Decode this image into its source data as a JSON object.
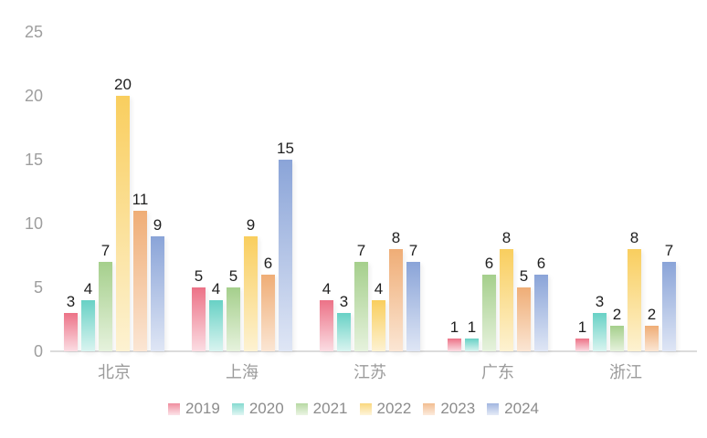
{
  "chart_data": {
    "type": "bar",
    "title": "",
    "xlabel": "",
    "ylabel": "",
    "categories": [
      "北京",
      "上海",
      "江苏",
      "广东",
      "浙江"
    ],
    "series": [
      {
        "name": "2019",
        "color": "#ec7287",
        "color_light": "#fbdde3",
        "values": [
          3,
          5,
          4,
          1,
          1
        ]
      },
      {
        "name": "2020",
        "color": "#68d1c5",
        "color_light": "#d9f4f0",
        "values": [
          4,
          4,
          3,
          1,
          3
        ]
      },
      {
        "name": "2021",
        "color": "#a5cf8c",
        "color_light": "#e6f2dd",
        "values": [
          7,
          5,
          7,
          6,
          2
        ]
      },
      {
        "name": "2022",
        "color": "#f9ce5e",
        "color_light": "#fdf2d2",
        "values": [
          20,
          9,
          4,
          8,
          8
        ]
      },
      {
        "name": "2023",
        "color": "#efad76",
        "color_light": "#fbe6d4",
        "values": [
          11,
          6,
          8,
          5,
          2
        ]
      },
      {
        "name": "2024",
        "color": "#8aa4d8",
        "color_light": "#dfe6f5",
        "values": [
          9,
          15,
          7,
          6,
          7
        ]
      }
    ],
    "ylim": [
      0,
      25
    ],
    "yticks": [
      0,
      5,
      10,
      15,
      20,
      25
    ],
    "grid": false,
    "legend_position": "bottom",
    "data_labels_shown": true
  },
  "colors": {
    "background": "#ffffff",
    "axis_line": "#dcdcdc",
    "axis_text": "#9e9e9e",
    "category_text": "#9b9b9b",
    "data_label_text": "#1f1f1f",
    "legend_text": "#8c8c8c"
  }
}
